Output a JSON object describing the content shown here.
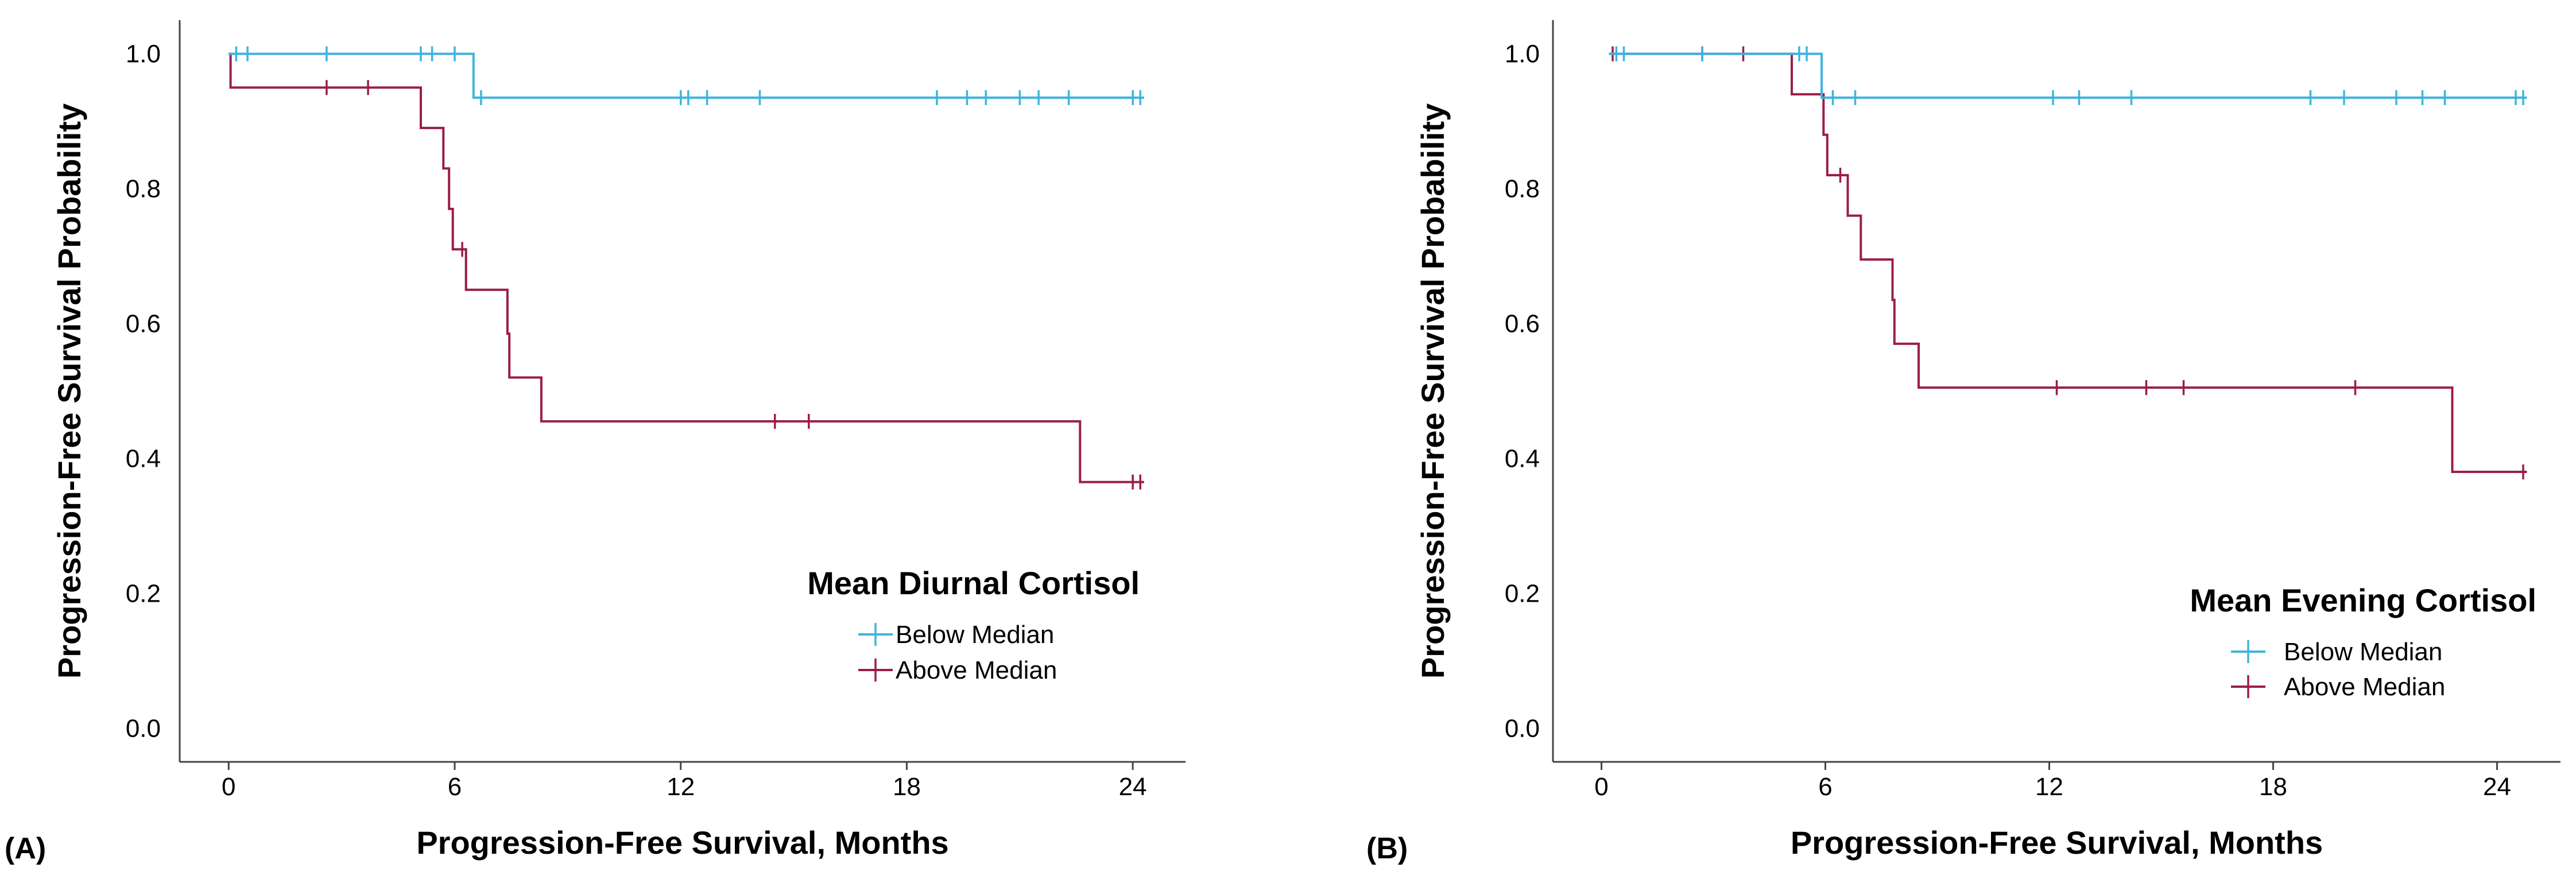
{
  "figure": {
    "background": "#ffffff"
  },
  "colors": {
    "below": "#3fb4dc",
    "above": "#9a1d49",
    "axis": "#444444"
  },
  "chart_data": [
    {
      "panel": "(A)",
      "type": "line",
      "subtype": "kaplan-meier",
      "title": "",
      "xlabel": "Progression-Free Survival, Months",
      "ylabel": "Progression-Free Survival Probability",
      "xlim": [
        -1.3,
        25.4
      ],
      "ylim": [
        -0.05,
        1.05
      ],
      "xticks": [
        0,
        6,
        12,
        18,
        24
      ],
      "xtick_labels": [
        "0",
        "6",
        "12",
        "18",
        "24"
      ],
      "yticks": [
        0.0,
        0.2,
        0.4,
        0.6,
        0.8,
        1.0
      ],
      "ytick_labels": [
        "0.0",
        "0.2",
        "0.4",
        "0.6",
        "0.8",
        "1.0"
      ],
      "legend": {
        "title": "Mean Diurnal Cortisol",
        "placement": "bottom-right"
      },
      "series": [
        {
          "name": "Below Median",
          "color_key": "below",
          "steps": [
            [
              0,
              1.0
            ],
            [
              6.5,
              0.935
            ],
            [
              24.3,
              0.935
            ]
          ],
          "censors": [
            [
              0.2,
              1.0
            ],
            [
              0.5,
              1.0
            ],
            [
              2.6,
              1.0
            ],
            [
              5.1,
              1.0
            ],
            [
              5.4,
              1.0
            ],
            [
              6.0,
              1.0
            ],
            [
              6.7,
              0.935
            ],
            [
              12.0,
              0.935
            ],
            [
              12.2,
              0.935
            ],
            [
              12.7,
              0.935
            ],
            [
              14.1,
              0.935
            ],
            [
              18.8,
              0.935
            ],
            [
              19.6,
              0.935
            ],
            [
              20.1,
              0.935
            ],
            [
              21.0,
              0.935
            ],
            [
              21.5,
              0.935
            ],
            [
              22.3,
              0.935
            ],
            [
              24.0,
              0.935
            ],
            [
              24.2,
              0.935
            ]
          ]
        },
        {
          "name": "Above Median",
          "color_key": "above",
          "steps": [
            [
              0,
              1.0
            ],
            [
              0.05,
              0.95
            ],
            [
              5.1,
              0.89
            ],
            [
              5.7,
              0.83
            ],
            [
              5.85,
              0.77
            ],
            [
              5.95,
              0.71
            ],
            [
              6.3,
              0.65
            ],
            [
              7.4,
              0.585
            ],
            [
              7.45,
              0.52
            ],
            [
              8.3,
              0.455
            ],
            [
              22.6,
              0.365
            ],
            [
              24.3,
              0.365
            ]
          ],
          "censors": [
            [
              2.6,
              0.95
            ],
            [
              3.7,
              0.95
            ],
            [
              6.2,
              0.71
            ],
            [
              14.5,
              0.455
            ],
            [
              15.4,
              0.455
            ],
            [
              24.0,
              0.365
            ],
            [
              24.2,
              0.365
            ]
          ]
        }
      ]
    },
    {
      "panel": "(B)",
      "type": "line",
      "subtype": "kaplan-meier",
      "title": "",
      "xlabel": "Progression-Free Survival, Months",
      "ylabel": "Progression-Free Survival Probability",
      "xlim": [
        -1.3,
        25.7
      ],
      "ylim": [
        -0.05,
        1.05
      ],
      "xticks": [
        0,
        6,
        12,
        18,
        24
      ],
      "xtick_labels": [
        "0",
        "6",
        "12",
        "18",
        "24"
      ],
      "yticks": [
        0.0,
        0.2,
        0.4,
        0.6,
        0.8,
        1.0
      ],
      "ytick_labels": [
        "0.0",
        "0.2",
        "0.4",
        "0.6",
        "0.8",
        "1.0"
      ],
      "legend": {
        "title": "Mean Evening Cortisol",
        "placement": "bottom-right"
      },
      "series": [
        {
          "name": "Below Median",
          "color_key": "below",
          "steps": [
            [
              0.2,
              1.0
            ],
            [
              5.9,
              0.935
            ],
            [
              24.8,
              0.935
            ]
          ],
          "censors": [
            [
              0.4,
              1.0
            ],
            [
              0.6,
              1.0
            ],
            [
              2.7,
              1.0
            ],
            [
              5.3,
              1.0
            ],
            [
              5.5,
              1.0
            ],
            [
              6.2,
              0.935
            ],
            [
              6.8,
              0.935
            ],
            [
              12.1,
              0.935
            ],
            [
              12.8,
              0.935
            ],
            [
              14.2,
              0.935
            ],
            [
              19.0,
              0.935
            ],
            [
              19.9,
              0.935
            ],
            [
              21.3,
              0.935
            ],
            [
              22.0,
              0.935
            ],
            [
              22.6,
              0.935
            ],
            [
              24.5,
              0.935
            ],
            [
              24.7,
              0.935
            ]
          ]
        },
        {
          "name": "Above Median",
          "color_key": "above",
          "steps": [
            [
              0.2,
              1.0
            ],
            [
              5.1,
              0.94
            ],
            [
              5.95,
              0.88
            ],
            [
              6.05,
              0.82
            ],
            [
              6.6,
              0.76
            ],
            [
              6.95,
              0.695
            ],
            [
              7.8,
              0.635
            ],
            [
              7.85,
              0.57
            ],
            [
              8.5,
              0.505
            ],
            [
              22.8,
              0.38
            ],
            [
              24.8,
              0.38
            ]
          ],
          "censors": [
            [
              0.3,
              1.0
            ],
            [
              2.7,
              1.0
            ],
            [
              3.8,
              1.0
            ],
            [
              6.4,
              0.82
            ],
            [
              12.2,
              0.505
            ],
            [
              14.6,
              0.505
            ],
            [
              15.6,
              0.505
            ],
            [
              20.2,
              0.505
            ],
            [
              24.7,
              0.38
            ]
          ]
        }
      ]
    }
  ]
}
